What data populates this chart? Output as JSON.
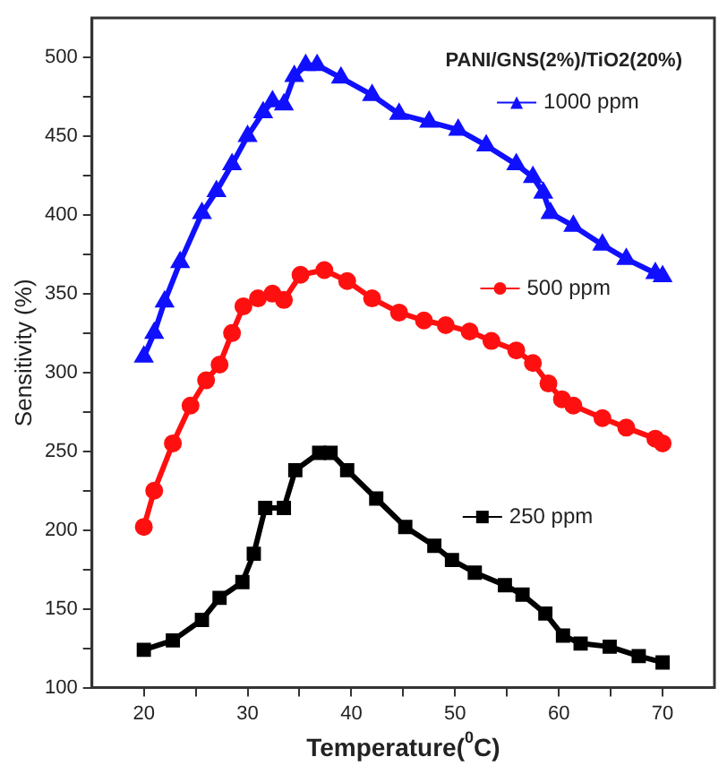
{
  "chart_data": {
    "type": "line",
    "title": "PANI/GNS(2%)/TiO2(20%)",
    "xlabel": "Temperature($^{0}$C)",
    "ylabel": "Sensitivity (%)",
    "xlim": [
      15,
      75
    ],
    "ylim": [
      100,
      525
    ],
    "xticks": [
      20,
      {
        "value": 25,
        "label": null
      },
      30,
      {
        "value": 35,
        "label": null
      },
      40,
      {
        "value": 45,
        "label": null
      },
      50,
      {
        "value": 55,
        "label": null
      },
      60,
      {
        "value": 65,
        "label": null
      },
      70
    ],
    "yticks": [
      100,
      {
        "value": 125,
        "label": null
      },
      150,
      {
        "value": 175,
        "label": null
      },
      200,
      {
        "value": 225,
        "label": null
      },
      250,
      {
        "value": 275,
        "label": null
      },
      300,
      {
        "value": 325,
        "label": null
      },
      350,
      {
        "value": 375,
        "label": null
      },
      400,
      {
        "value": 425,
        "label": null
      },
      450,
      {
        "value": 475,
        "label": null
      },
      500
    ],
    "grid": false,
    "line_style": "solid",
    "legend": "right",
    "series": [
      {
        "name": "1000 ppm",
        "color": "#1010ff",
        "marker": "triangle",
        "x": [
          20,
          21,
          22,
          23.5,
          25.6,
          27,
          28.5,
          30,
          31.5,
          32.4,
          33.5,
          34.5,
          35.6,
          36.7,
          39,
          42,
          44.6,
          47.5,
          50.3,
          53,
          55.9,
          57.5,
          58.5,
          59.2,
          61.4,
          64.2,
          66.5,
          69.3,
          70
        ],
        "values": [
          310,
          325,
          345,
          370,
          401,
          415,
          432,
          450,
          465,
          472,
          470,
          488,
          495,
          495,
          487,
          476,
          464,
          459,
          454,
          444,
          432,
          424,
          414,
          401,
          393,
          381,
          372,
          363,
          361
        ]
      },
      {
        "name": "500 ppm",
        "color": "#ff1010",
        "marker": "circle",
        "x": [
          20,
          21,
          22.8,
          24.5,
          26,
          27.3,
          28.5,
          29.6,
          31,
          32.4,
          33.5,
          35.1,
          37.4,
          39.6,
          42,
          44.6,
          47,
          49.1,
          51.4,
          53.5,
          55.9,
          57.5,
          59,
          60.3,
          61.4,
          64.2,
          66.5,
          69.3,
          70
        ],
        "values": [
          202,
          225,
          255,
          279,
          295,
          305,
          325,
          342,
          347,
          350,
          346,
          362,
          365,
          358,
          347,
          338,
          333,
          330,
          326,
          320,
          314,
          306,
          293,
          283,
          279,
          271,
          265,
          258,
          255
        ]
      },
      {
        "name": "250 ppm",
        "color": "#000000",
        "marker": "square",
        "x": [
          20,
          22.8,
          25.6,
          27.3,
          29.5,
          30.6,
          31.7,
          33.5,
          34.6,
          36.9,
          38,
          39.6,
          42.4,
          45.2,
          48,
          49.7,
          51.9,
          54.8,
          56.5,
          58.7,
          60.4,
          62.1,
          64.9,
          67.7,
          70
        ],
        "values": [
          124,
          130,
          143,
          157,
          167,
          185,
          214,
          214,
          238,
          249,
          249,
          238,
          220,
          202,
          190,
          181,
          173,
          165,
          159,
          147,
          133,
          128,
          126,
          120,
          116
        ]
      }
    ]
  }
}
